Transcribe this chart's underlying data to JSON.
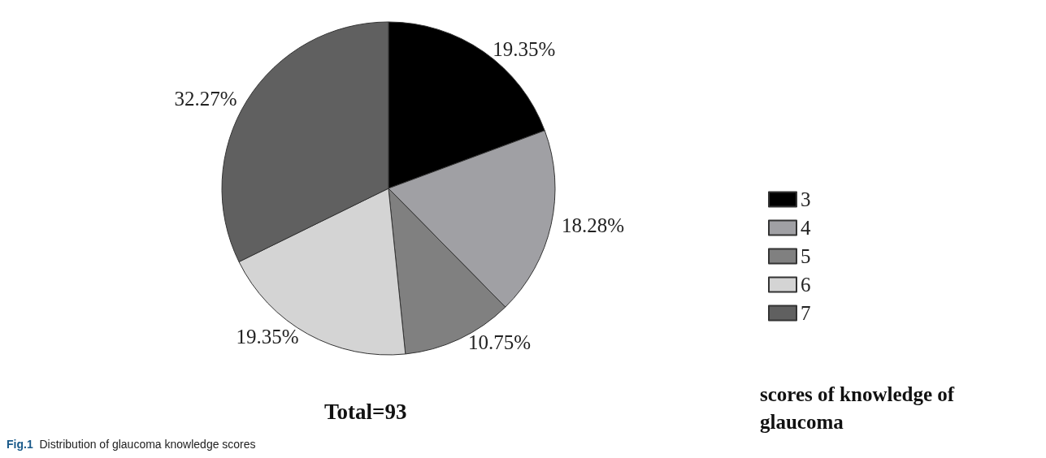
{
  "chart_data": {
    "type": "pie",
    "categories": [
      "3",
      "4",
      "5",
      "6",
      "7"
    ],
    "values": [
      19.35,
      18.28,
      10.75,
      19.35,
      32.27
    ],
    "value_labels": [
      "19.35%",
      "18.28%",
      "10.75%",
      "19.35%",
      "32.27%"
    ],
    "colors": [
      "#000000",
      "#a0a0a4",
      "#808080",
      "#d4d4d4",
      "#606060"
    ],
    "legend": "right",
    "legend_title": "scores of knowledge of glaucoma",
    "annotations": [
      "Total=93",
      "Fig.1 Distribution of glaucoma knowledge scores"
    ]
  }
}
